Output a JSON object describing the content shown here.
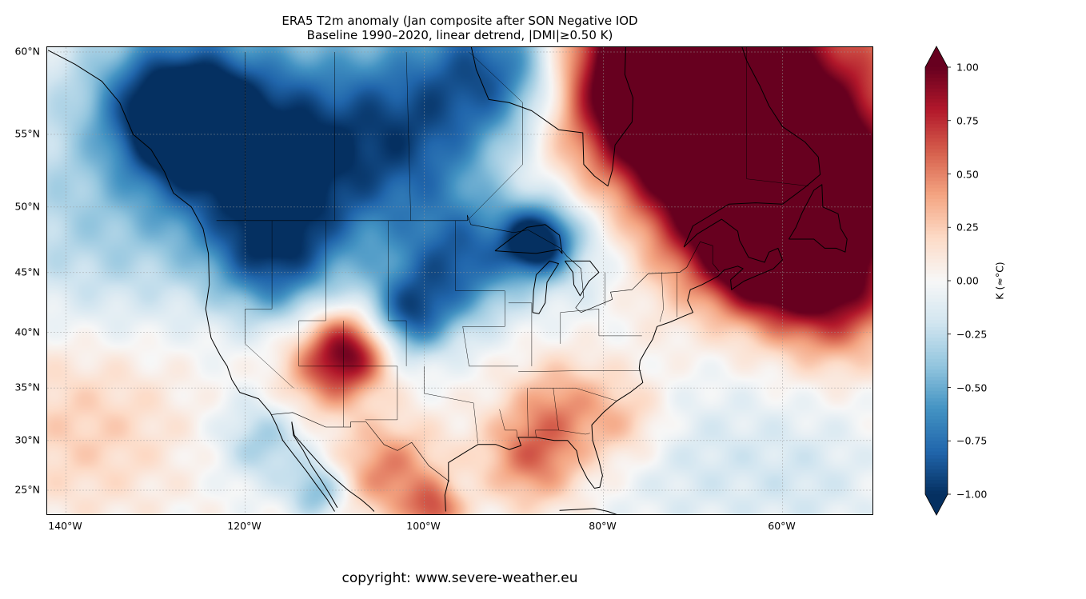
{
  "chart_data": {
    "type": "heatmap",
    "title": "ERA5 T2m anomaly (Jan composite after SON Negative IOD",
    "subtitle": "Baseline 1990–2020, linear detrend, |DMI|≥0.50 K)",
    "projection": "mercator",
    "xlim": [
      -142,
      -50
    ],
    "ylim": [
      23,
      60.4
    ],
    "x_ticks": [
      -140,
      -120,
      -100,
      -80,
      -60
    ],
    "x_tick_labels": [
      "140°W",
      "120°W",
      "100°W",
      "80°W",
      "60°W"
    ],
    "y_ticks": [
      25,
      30,
      35,
      40,
      45,
      50,
      55,
      60
    ],
    "y_tick_labels": [
      "25°N",
      "30°N",
      "35°N",
      "40°N",
      "45°N",
      "50°N",
      "55°N",
      "60°N"
    ],
    "grid": true,
    "colormap": "RdBu_r",
    "colormap_stops": [
      "#053061",
      "#2166ac",
      "#4393c3",
      "#92c5de",
      "#d1e5f0",
      "#f7f7f7",
      "#fddbc7",
      "#f4a582",
      "#d6604d",
      "#b2182b",
      "#67001f"
    ],
    "colorbar": {
      "label": "K (≈°C)",
      "range": [
        -1.0,
        1.0
      ],
      "extend": "both",
      "ticks": [
        1.0,
        0.75,
        0.5,
        0.25,
        0.0,
        -0.25,
        -0.5,
        -0.75,
        -1.0
      ],
      "tick_labels": [
        "1.00",
        "0.75",
        "0.50",
        "0.25",
        "0.00",
        "−0.25",
        "−0.50",
        "−0.75",
        "−1.00"
      ]
    },
    "anomaly_features": [
      {
        "lon": -68,
        "lat": 55,
        "value": 1.1,
        "spread_deg": 7
      },
      {
        "lon": -60,
        "lat": 52,
        "value": 1.0,
        "spread_deg": 5
      },
      {
        "lon": -74,
        "lat": 59,
        "value": 1.0,
        "spread_deg": 3.5
      },
      {
        "lon": -57,
        "lat": 48,
        "value": 0.8,
        "spread_deg": 4
      },
      {
        "lon": -54,
        "lat": 43,
        "value": 0.6,
        "spread_deg": 4
      },
      {
        "lon": -63,
        "lat": 46,
        "value": 0.5,
        "spread_deg": 3
      },
      {
        "lon": -128,
        "lat": 56.5,
        "value": -0.95,
        "spread_deg": 3
      },
      {
        "lon": -120,
        "lat": 54,
        "value": -0.7,
        "spread_deg": 4.5
      },
      {
        "lon": -110,
        "lat": 52,
        "value": -0.55,
        "spread_deg": 5
      },
      {
        "lon": -100,
        "lat": 56,
        "value": -0.6,
        "spread_deg": 4
      },
      {
        "lon": -91,
        "lat": 59.5,
        "value": -0.75,
        "spread_deg": 3
      },
      {
        "lon": -87.5,
        "lat": 47.5,
        "value": -1.0,
        "spread_deg": 1.8
      },
      {
        "lon": -96,
        "lat": 46,
        "value": -0.75,
        "spread_deg": 3.5
      },
      {
        "lon": -102,
        "lat": 41.5,
        "value": -0.75,
        "spread_deg": 2.5
      },
      {
        "lon": -117,
        "lat": 46,
        "value": -0.65,
        "spread_deg": 3.5
      },
      {
        "lon": -82,
        "lat": 48,
        "value": -0.35,
        "spread_deg": 4
      },
      {
        "lon": -135,
        "lat": 49,
        "value": -0.35,
        "spread_deg": 7
      },
      {
        "lon": -118,
        "lat": 30,
        "value": -0.35,
        "spread_deg": 3
      },
      {
        "lon": -112,
        "lat": 25,
        "value": -0.45,
        "spread_deg": 2
      },
      {
        "lon": -108.5,
        "lat": 38.5,
        "value": 0.85,
        "spread_deg": 2.5
      },
      {
        "lon": -112,
        "lat": 36,
        "value": 0.35,
        "spread_deg": 3
      },
      {
        "lon": -104,
        "lat": 27,
        "value": 0.5,
        "spread_deg": 3.5
      },
      {
        "lon": -99,
        "lat": 23,
        "value": 0.55,
        "spread_deg": 2
      },
      {
        "lon": -88,
        "lat": 28.5,
        "value": 0.55,
        "spread_deg": 3.5
      },
      {
        "lon": -85,
        "lat": 34,
        "value": 0.3,
        "spread_deg": 3
      },
      {
        "lon": -78,
        "lat": 32,
        "value": 0.3,
        "spread_deg": 3
      },
      {
        "lon": -138,
        "lat": 32,
        "value": 0.25,
        "spread_deg": 7
      },
      {
        "lon": -70,
        "lat": 28,
        "value": -0.15,
        "spread_deg": 6
      },
      {
        "lon": -57,
        "lat": 26,
        "value": -0.15,
        "spread_deg": 5
      }
    ]
  },
  "footer": {
    "copyright": "copyright: www.severe-weather.eu"
  }
}
